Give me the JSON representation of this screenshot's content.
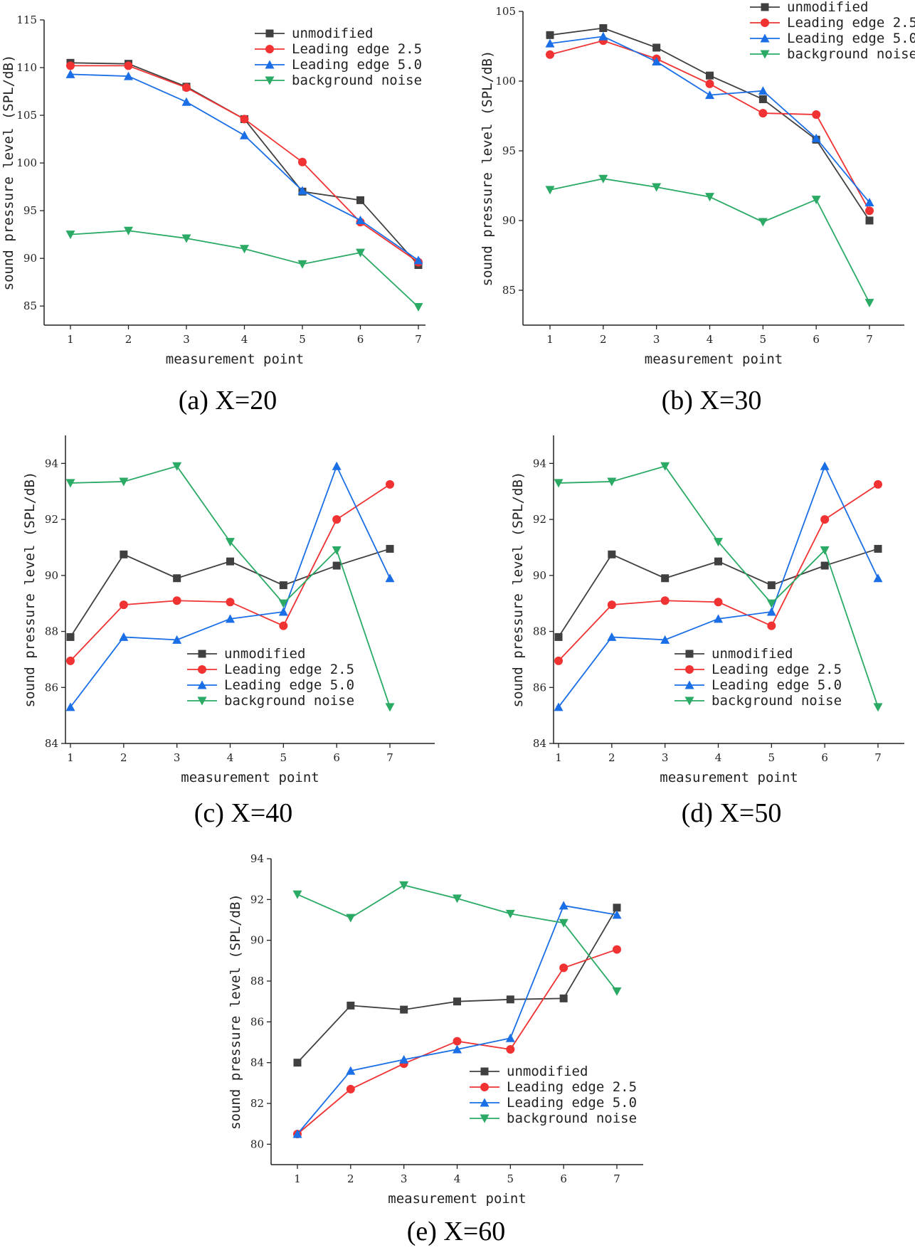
{
  "colors": {
    "unmodified": "#404040",
    "leading_edge_2_5": "#f03232",
    "leading_edge_5_0": "#1a6ee6",
    "background_noise": "#2aaa64"
  },
  "chart_data": [
    {
      "type": "line",
      "caption": "(a) X=20",
      "xlabel": "measurement point",
      "ylabel": "sound pressure level (SPL/dB)",
      "x": [
        1,
        2,
        3,
        4,
        5,
        6,
        7
      ],
      "ylim": [
        83,
        115
      ],
      "yticks": [
        85,
        90,
        95,
        100,
        105,
        110,
        115
      ],
      "legend": "top-right",
      "series": [
        {
          "name": "unmodified",
          "marker": "square",
          "values": [
            110.5,
            110.4,
            108.0,
            104.6,
            97.0,
            96.1,
            89.3
          ]
        },
        {
          "name": "Leading edge 2.5",
          "marker": "circle",
          "values": [
            110.2,
            110.2,
            107.9,
            104.6,
            100.1,
            93.8,
            89.6
          ]
        },
        {
          "name": "Leading edge 5.0",
          "marker": "triangle-up",
          "values": [
            109.3,
            109.1,
            106.4,
            102.9,
            97.1,
            94.0,
            89.8
          ]
        },
        {
          "name": "background noise",
          "marker": "triangle-down",
          "values": [
            92.5,
            92.9,
            92.1,
            91.0,
            89.4,
            90.6,
            84.9
          ]
        }
      ]
    },
    {
      "type": "line",
      "caption": "(b) X=30",
      "xlabel": "measurement point",
      "ylabel": "sound pressure level (SPL/dB)",
      "x": [
        1,
        2,
        3,
        4,
        5,
        6,
        7
      ],
      "ylim": [
        82.5,
        105
      ],
      "yticks": [
        85,
        90,
        95,
        100,
        105
      ],
      "legend": "top-right",
      "series": [
        {
          "name": "unmodified",
          "marker": "square",
          "values": [
            103.3,
            103.8,
            102.4,
            100.4,
            98.7,
            95.8,
            90.0
          ]
        },
        {
          "name": "Leading edge 2.5",
          "marker": "circle",
          "values": [
            101.9,
            102.9,
            101.6,
            99.8,
            97.7,
            97.6,
            90.7
          ]
        },
        {
          "name": "Leading edge 5.0",
          "marker": "triangle-up",
          "values": [
            102.7,
            103.2,
            101.4,
            99.0,
            99.3,
            95.9,
            91.3
          ]
        },
        {
          "name": "background noise",
          "marker": "triangle-down",
          "values": [
            92.2,
            93.0,
            92.4,
            91.7,
            89.9,
            91.5,
            84.1
          ]
        }
      ]
    },
    {
      "type": "line",
      "caption": "(c) X=40",
      "xlabel": "measurement point",
      "ylabel": "sound pressure level (SPL/dB)",
      "x": [
        1,
        2,
        3,
        4,
        5,
        6,
        7
      ],
      "ylim": [
        84,
        95
      ],
      "yticks": [
        84,
        86,
        88,
        90,
        92,
        94
      ],
      "legend": "lower-center",
      "series": [
        {
          "name": "unmodified",
          "marker": "square",
          "values": [
            87.8,
            90.75,
            89.9,
            90.5,
            89.65,
            90.35,
            90.95
          ]
        },
        {
          "name": "Leading edge 2.5",
          "marker": "circle",
          "values": [
            86.95,
            88.95,
            89.1,
            89.05,
            88.2,
            92.0,
            93.25
          ]
        },
        {
          "name": "Leading edge 5.0",
          "marker": "triangle-up",
          "values": [
            85.3,
            87.8,
            87.7,
            88.45,
            88.7,
            93.9,
            89.9
          ]
        },
        {
          "name": "background noise",
          "marker": "triangle-down",
          "values": [
            93.3,
            93.35,
            93.9,
            91.2,
            89.0,
            90.9,
            85.3
          ]
        }
      ]
    },
    {
      "type": "line",
      "caption": "(d) X=50",
      "xlabel": "measurement point",
      "ylabel": "sound pressure level (SPL/dB)",
      "x": [
        1,
        2,
        3,
        4,
        5,
        6,
        7
      ],
      "ylim": [
        84,
        95
      ],
      "yticks": [
        84,
        86,
        88,
        90,
        92,
        94
      ],
      "legend": "lower-center",
      "series": [
        {
          "name": "unmodified",
          "marker": "square",
          "values": [
            87.8,
            90.75,
            89.9,
            90.5,
            89.65,
            90.35,
            90.95
          ]
        },
        {
          "name": "Leading edge 2.5",
          "marker": "circle",
          "values": [
            86.95,
            88.95,
            89.1,
            89.05,
            88.2,
            92.0,
            93.25
          ]
        },
        {
          "name": "Leading edge 5.0",
          "marker": "triangle-up",
          "values": [
            85.3,
            87.8,
            87.7,
            88.45,
            88.7,
            93.9,
            89.9
          ]
        },
        {
          "name": "background noise",
          "marker": "triangle-down",
          "values": [
            93.3,
            93.35,
            93.9,
            91.2,
            89.0,
            90.9,
            85.3
          ]
        }
      ]
    },
    {
      "type": "line",
      "caption": "(e) X=60",
      "xlabel": "measurement point",
      "ylabel": "sound pressure level (SPL/dB)",
      "x": [
        1,
        2,
        3,
        4,
        5,
        6,
        7
      ],
      "ylim": [
        79,
        94
      ],
      "yticks": [
        80,
        82,
        84,
        86,
        88,
        90,
        92,
        94
      ],
      "legend": "lower-right",
      "series": [
        {
          "name": "unmodified",
          "marker": "square",
          "values": [
            84.0,
            86.8,
            86.6,
            87.0,
            87.1,
            87.15,
            91.6
          ]
        },
        {
          "name": "Leading edge 2.5",
          "marker": "circle",
          "values": [
            80.5,
            82.7,
            83.95,
            85.05,
            84.65,
            88.65,
            89.55
          ]
        },
        {
          "name": "Leading edge 5.0",
          "marker": "triangle-up",
          "values": [
            80.5,
            83.6,
            84.15,
            84.65,
            85.2,
            91.7,
            91.25
          ]
        },
        {
          "name": "background noise",
          "marker": "triangle-down",
          "values": [
            92.25,
            91.1,
            92.7,
            92.05,
            91.3,
            90.85,
            87.5
          ]
        }
      ]
    }
  ]
}
